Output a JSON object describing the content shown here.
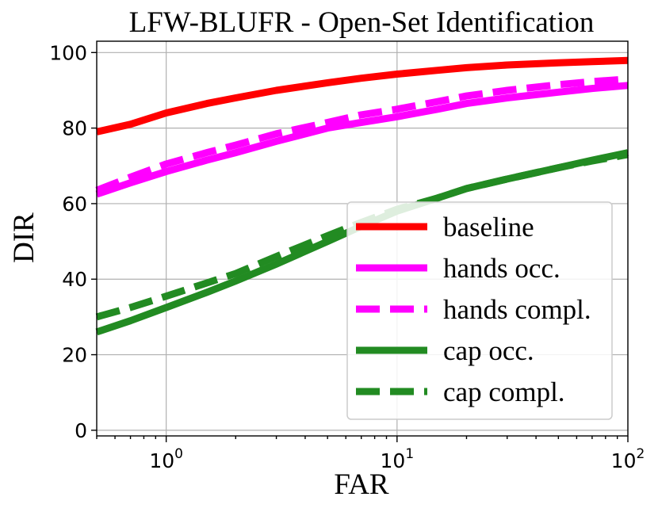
{
  "chart_data": {
    "type": "line",
    "title": "LFW-BLUFR - Open-Set Identification",
    "xlabel": "FAR",
    "ylabel": "DIR",
    "xscale": "log",
    "xlim": [
      0.5,
      100
    ],
    "ylim": [
      -1.5,
      103
    ],
    "yticks": [
      0,
      20,
      40,
      60,
      80,
      100
    ],
    "xticks": [
      {
        "value": 1,
        "base": "10",
        "exp": "0"
      },
      {
        "value": 10,
        "base": "10",
        "exp": "1"
      },
      {
        "value": 100,
        "base": "10",
        "exp": "2"
      }
    ],
    "grid": true,
    "legend_position": "lower-right",
    "series": [
      {
        "name": "baseline",
        "color": "#ff0000",
        "style": "solid",
        "x": [
          0.5,
          0.7,
          1,
          1.5,
          2,
          3,
          5,
          7,
          10,
          15,
          20,
          30,
          50,
          70,
          100
        ],
        "y": [
          79,
          81,
          84,
          86.5,
          88,
          90,
          92,
          93.2,
          94.3,
          95.3,
          96,
          96.7,
          97.3,
          97.6,
          97.9
        ]
      },
      {
        "name": "hands occ.",
        "color": "#ff00ff",
        "style": "solid",
        "x": [
          0.5,
          0.7,
          1,
          1.5,
          2,
          3,
          5,
          7,
          10,
          15,
          20,
          30,
          50,
          70,
          100
        ],
        "y": [
          62.5,
          65.5,
          68.5,
          71.5,
          73.5,
          76.5,
          80,
          81.5,
          83,
          85,
          86.5,
          88,
          89.5,
          90.5,
          91.3
        ]
      },
      {
        "name": "hands compl.",
        "color": "#ff00ff",
        "style": "dashed",
        "x": [
          0.5,
          0.7,
          1,
          1.5,
          2,
          3,
          5,
          7,
          10,
          15,
          20,
          30,
          50,
          70,
          100
        ],
        "y": [
          63.5,
          67,
          70.5,
          73.5,
          75.5,
          78.5,
          81.5,
          83.5,
          85,
          87,
          88.5,
          90,
          91.5,
          92.3,
          93
        ]
      },
      {
        "name": "cap occ.",
        "color": "#228b22",
        "style": "solid",
        "x": [
          0.5,
          0.7,
          1,
          1.5,
          2,
          3,
          5,
          7,
          10,
          15,
          20,
          30,
          50,
          70,
          100
        ],
        "y": [
          26,
          29,
          32.5,
          36.5,
          39.5,
          44,
          50,
          54,
          58,
          61.5,
          64,
          66.5,
          69.5,
          71.5,
          73.5
        ]
      },
      {
        "name": "cap compl.",
        "color": "#228b22",
        "style": "dashed",
        "x": [
          0.5,
          0.7,
          1,
          1.5,
          2,
          3,
          5,
          7,
          10,
          15,
          20,
          30,
          50,
          70,
          100
        ],
        "y": [
          30,
          32.5,
          35.5,
          39,
          41.5,
          46,
          51.5,
          55,
          58.5,
          61.5,
          64,
          66.5,
          69.5,
          71.3,
          73
        ]
      }
    ]
  }
}
